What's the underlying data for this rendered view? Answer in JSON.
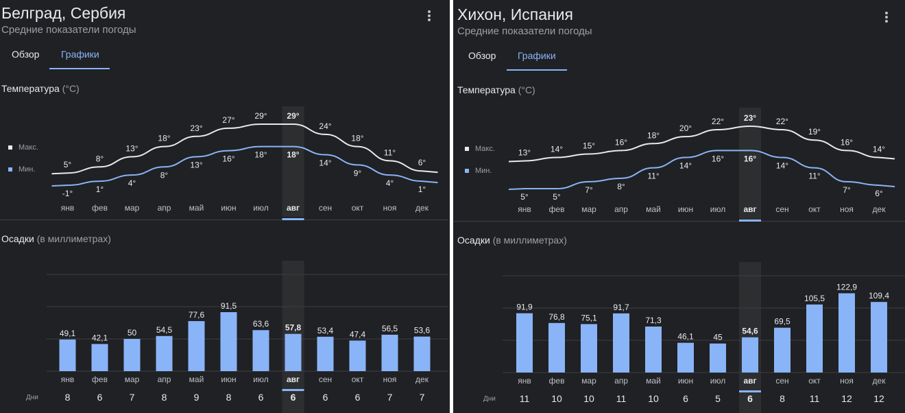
{
  "legend": {
    "max": "Макс.",
    "min": "Мин."
  },
  "colors": {
    "background": "#202124",
    "max_line": "#e8eaed",
    "min_line": "#8ab4f8",
    "bar": "#8ab4f8",
    "highlight": "#2d2e30",
    "accent": "#8ab4f8"
  },
  "panels": [
    {
      "title": "Белград, Сербия",
      "subtitle": "Средние показатели погоды",
      "tabs": [
        "Обзор",
        "Графики"
      ],
      "active_tab": 1,
      "temp_section": {
        "label": "Температура",
        "unit": "(°C)"
      },
      "precip_section": {
        "label": "Осадки",
        "unit": "(в миллиметрах)"
      },
      "days_label": "Дни",
      "selected_month": 7,
      "months": [
        "янв",
        "фев",
        "мар",
        "апр",
        "май",
        "июн",
        "июл",
        "авг",
        "сен",
        "окт",
        "ноя",
        "дек"
      ],
      "chart_data": [
        {
          "type": "line",
          "title": "Температура (°C)",
          "x": [
            "янв",
            "фев",
            "мар",
            "апр",
            "май",
            "июн",
            "июл",
            "авг",
            "сен",
            "окт",
            "ноя",
            "дек"
          ],
          "series": [
            {
              "name": "Макс.",
              "values": [
                5,
                8,
                13,
                18,
                23,
                27,
                29,
                29,
                24,
                18,
                11,
                6
              ],
              "labels": [
                "5°",
                "8°",
                "13°",
                "18°",
                "23°",
                "27°",
                "29°",
                "29°",
                "24°",
                "18°",
                "11°",
                "6°"
              ]
            },
            {
              "name": "Мин.",
              "values": [
                -1,
                1,
                4,
                8,
                13,
                16,
                18,
                18,
                14,
                9,
                4,
                1
              ],
              "labels": [
                "-1°",
                "1°",
                "4°",
                "8°",
                "13°",
                "16°",
                "18°",
                "18°",
                "14°",
                "9°",
                "4°",
                "1°"
              ]
            }
          ]
        },
        {
          "type": "bar",
          "title": "Осадки (в миллиметрах)",
          "categories": [
            "янв",
            "фев",
            "мар",
            "апр",
            "май",
            "июн",
            "июл",
            "авг",
            "сен",
            "окт",
            "ноя",
            "дек"
          ],
          "values": [
            49.1,
            42.1,
            50,
            54.5,
            77.6,
            91.5,
            63.6,
            57.8,
            53.4,
            47.4,
            56.5,
            53.6
          ],
          "labels": [
            "49,1",
            "42,1",
            "50",
            "54,5",
            "77,6",
            "91,5",
            "63,6",
            "57,8",
            "53,4",
            "47,4",
            "56,5",
            "53,6"
          ],
          "ylim": [
            0,
            150
          ]
        }
      ],
      "days": [
        "8",
        "6",
        "7",
        "8",
        "9",
        "8",
        "6",
        "6",
        "6",
        "6",
        "7",
        "7"
      ]
    },
    {
      "title": "Хихон, Испания",
      "subtitle": "Средние показатели погоды",
      "tabs": [
        "Обзор",
        "Графики"
      ],
      "active_tab": 1,
      "temp_section": {
        "label": "Температура",
        "unit": "(°C)"
      },
      "precip_section": {
        "label": "Осадки",
        "unit": "(в миллиметрах)"
      },
      "days_label": "Дни",
      "selected_month": 7,
      "months": [
        "янв",
        "фев",
        "мар",
        "апр",
        "май",
        "июн",
        "июл",
        "авг",
        "сен",
        "окт",
        "ноя",
        "дек"
      ],
      "chart_data": [
        {
          "type": "line",
          "title": "Температура (°C)",
          "x": [
            "янв",
            "фев",
            "мар",
            "апр",
            "май",
            "июн",
            "июл",
            "авг",
            "сен",
            "окт",
            "ноя",
            "дек"
          ],
          "series": [
            {
              "name": "Макс.",
              "values": [
                13,
                14,
                15,
                16,
                18,
                20,
                22,
                23,
                22,
                19,
                16,
                14
              ],
              "labels": [
                "13°",
                "14°",
                "15°",
                "16°",
                "18°",
                "20°",
                "22°",
                "23°",
                "22°",
                "19°",
                "16°",
                "14°"
              ]
            },
            {
              "name": "Мин.",
              "values": [
                5,
                5,
                7,
                8,
                11,
                14,
                16,
                16,
                14,
                11,
                7,
                6
              ],
              "labels": [
                "5°",
                "5°",
                "7°",
                "8°",
                "11°",
                "14°",
                "16°",
                "16°",
                "14°",
                "11°",
                "7°",
                "6°"
              ]
            }
          ]
        },
        {
          "type": "bar",
          "title": "Осадки (в миллиметрах)",
          "categories": [
            "янв",
            "фев",
            "мар",
            "апр",
            "май",
            "июн",
            "июл",
            "авг",
            "сен",
            "окт",
            "ноя",
            "дек"
          ],
          "values": [
            91.9,
            76.8,
            75.1,
            91.7,
            71.3,
            46.1,
            45,
            54.6,
            69.5,
            105.5,
            122.9,
            109.4
          ],
          "labels": [
            "91,9",
            "76,8",
            "75,1",
            "91,7",
            "71,3",
            "46,1",
            "45",
            "54,6",
            "69,5",
            "105,5",
            "122,9",
            "109,4"
          ],
          "ylim": [
            0,
            150
          ]
        }
      ],
      "days": [
        "11",
        "10",
        "10",
        "11",
        "10",
        "6",
        "5",
        "6",
        "8",
        "11",
        "12",
        "12"
      ]
    }
  ]
}
